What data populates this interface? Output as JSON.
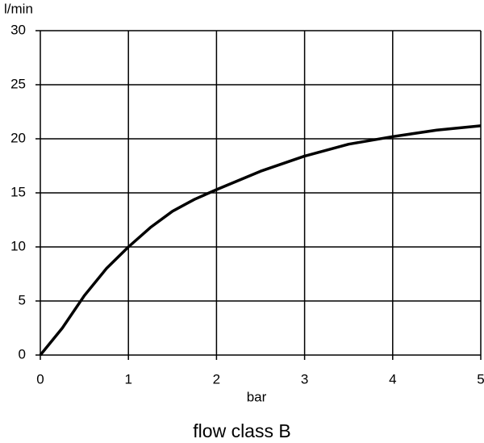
{
  "chart_data": {
    "type": "line",
    "title": "flow class B",
    "x_label": "bar",
    "y_label": "l/min",
    "x": [
      0,
      0.25,
      0.5,
      0.75,
      1,
      1.25,
      1.5,
      1.75,
      2,
      2.5,
      3,
      3.5,
      4,
      4.5,
      5
    ],
    "series": [
      {
        "name": "flow",
        "color": "#000000",
        "values": [
          0,
          2.5,
          5.5,
          8,
          10,
          11.8,
          13.3,
          14.4,
          15.3,
          17,
          18.4,
          19.5,
          20.2,
          20.8,
          21.2
        ]
      }
    ],
    "xlim": [
      0,
      5
    ],
    "xticks": [
      0,
      1,
      2,
      3,
      4,
      5
    ],
    "ylim": [
      0,
      30
    ],
    "yticks": [
      0,
      5,
      10,
      15,
      20,
      25,
      30
    ],
    "grid": true
  }
}
